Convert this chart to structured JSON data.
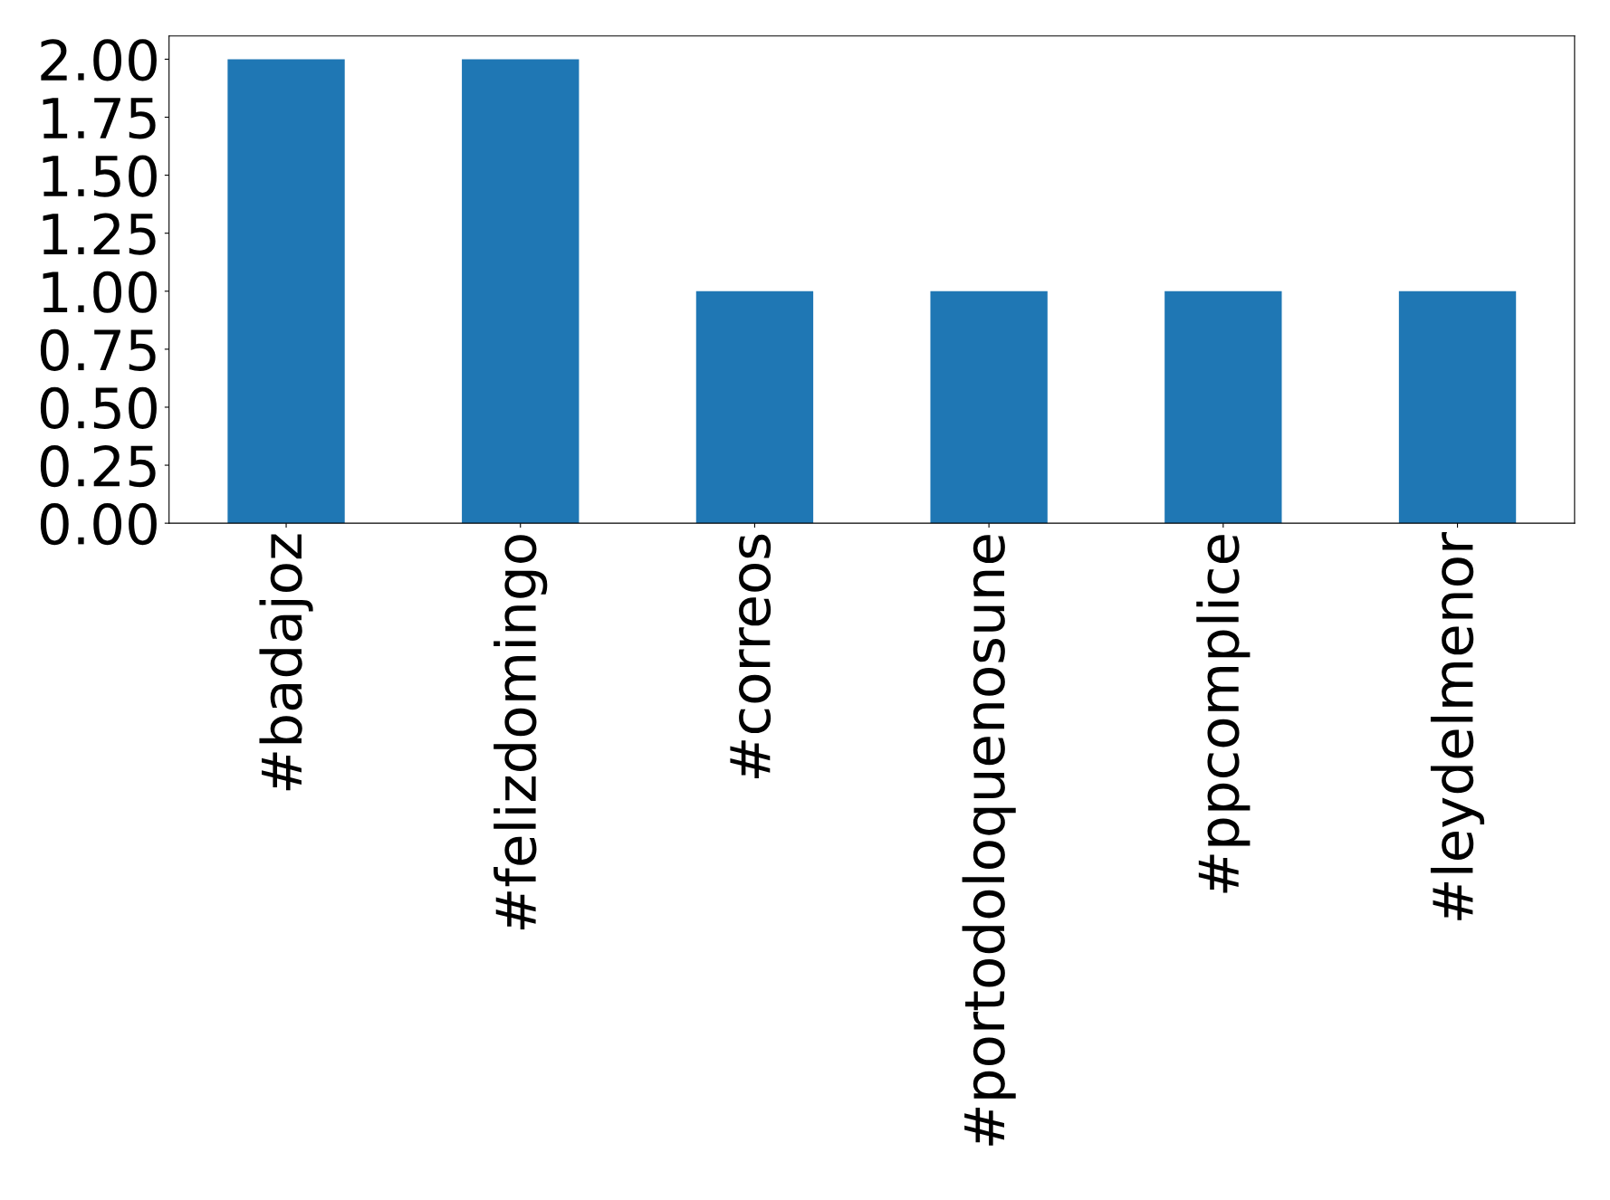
{
  "chart_data": {
    "type": "bar",
    "categories": [
      "#badajoz",
      "#felizdomingo",
      "#correos",
      "#portodoloquenosune",
      "#ppcomplice",
      "#leydelmenor"
    ],
    "values": [
      2,
      2,
      1,
      1,
      1,
      1
    ],
    "color": "#1f77b4",
    "ylim": [
      0,
      2.1
    ],
    "yticks": [
      {
        "value": 0,
        "label": "0.00"
      },
      {
        "value": 0.25,
        "label": "0.25"
      },
      {
        "value": 0.5,
        "label": "0.50"
      },
      {
        "value": 0.75,
        "label": "0.75"
      },
      {
        "value": 1,
        "label": "1.00"
      },
      {
        "value": 1.25,
        "label": "1.25"
      },
      {
        "value": 1.5,
        "label": "1.50"
      },
      {
        "value": 1.75,
        "label": "1.75"
      },
      {
        "value": 2,
        "label": "2.00"
      }
    ],
    "grid": false,
    "legend": false
  }
}
